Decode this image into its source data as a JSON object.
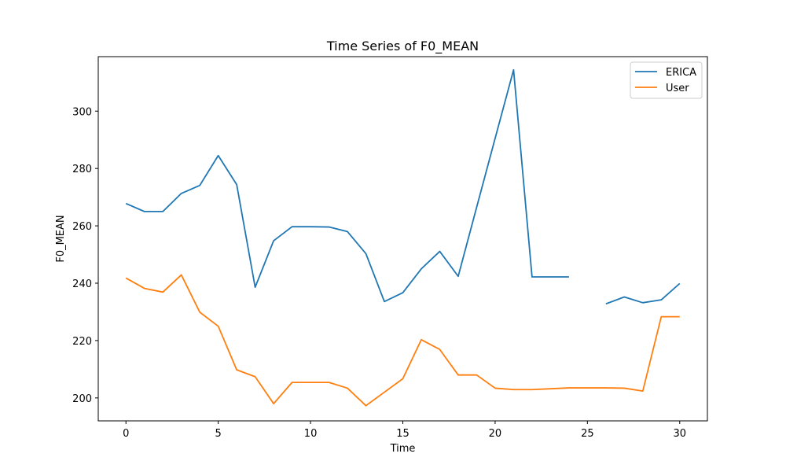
{
  "chart_data": {
    "type": "line",
    "title": "Time Series of F0_MEAN",
    "xlabel": "Time",
    "ylabel": "F0_MEAN",
    "xlim": [
      -1.5,
      31.5
    ],
    "ylim": [
      192,
      319
    ],
    "xticks": [
      0,
      5,
      10,
      15,
      20,
      25,
      30
    ],
    "yticks": [
      200,
      220,
      240,
      260,
      280,
      300
    ],
    "grid": false,
    "legend_position": "upper right",
    "x": [
      0,
      1,
      2,
      3,
      4,
      5,
      6,
      7,
      8,
      9,
      10,
      11,
      12,
      13,
      14,
      15,
      16,
      17,
      18,
      19,
      20,
      21,
      22,
      23,
      24,
      25,
      26,
      27,
      28,
      29,
      30
    ],
    "series": [
      {
        "name": "ERICA",
        "color": "#1f77b4",
        "values": [
          267.8,
          265.0,
          265.0,
          271.3,
          274.1,
          284.5,
          274.4,
          238.6,
          254.8,
          259.7,
          259.7,
          259.6,
          258.0,
          250.3,
          233.6,
          236.7,
          245.0,
          251.1,
          242.4,
          266.5,
          290.5,
          314.4,
          242.2,
          242.2,
          242.2,
          null,
          232.8,
          235.2,
          233.2,
          234.2,
          239.9
        ]
      },
      {
        "name": "User",
        "color": "#ff7f0e",
        "values": [
          241.8,
          238.2,
          236.9,
          242.9,
          229.9,
          225.0,
          209.8,
          207.4,
          198.0,
          205.4,
          205.4,
          205.4,
          203.4,
          197.3,
          202.0,
          206.7,
          220.3,
          216.9,
          208.0,
          208.0,
          203.4,
          202.9,
          202.9,
          203.2,
          203.5,
          203.5,
          203.5,
          203.4,
          202.4,
          228.3,
          228.3
        ]
      }
    ]
  }
}
